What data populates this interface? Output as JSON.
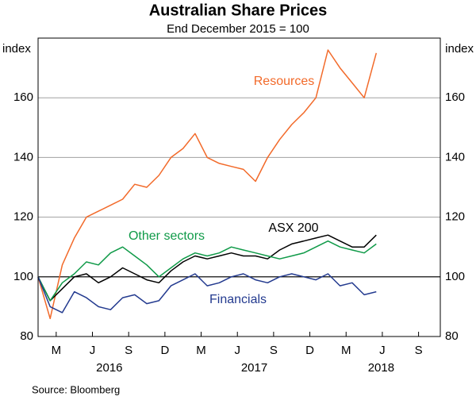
{
  "chart_data": {
    "type": "line",
    "title": "Australian Share Prices",
    "subtitle": "End December 2015 = 100",
    "y_label_left": "index",
    "y_label_right": "index",
    "source": "Source:   Bloomberg",
    "x": [
      0,
      1,
      2,
      3,
      4,
      5,
      6,
      7,
      8,
      9,
      10,
      11,
      12,
      13,
      14,
      15,
      16,
      17,
      18,
      19,
      20,
      21,
      22,
      23,
      24,
      25,
      26,
      27,
      28
    ],
    "series": [
      {
        "name": "Resources",
        "color": "#f26a2a",
        "values": [
          100,
          86,
          104,
          113,
          120,
          122,
          124,
          126,
          131,
          130,
          134,
          140,
          143,
          148,
          140,
          138,
          137,
          136,
          132,
          140,
          146,
          151,
          155,
          160,
          176,
          170,
          165,
          160,
          175
        ]
      },
      {
        "name": "ASX 200",
        "color": "#000000",
        "values": [
          100,
          92,
          96,
          100,
          101,
          98,
          100,
          103,
          101,
          99,
          98,
          102,
          105,
          107,
          106,
          107,
          108,
          107,
          107,
          106,
          109,
          111,
          112,
          113,
          114,
          112,
          110,
          110,
          114
        ]
      },
      {
        "name": "Other sectors",
        "color": "#0f9a48",
        "values": [
          100,
          92,
          98,
          101,
          105,
          104,
          108,
          110,
          107,
          104,
          100,
          103,
          106,
          108,
          107,
          108,
          110,
          109,
          108,
          107,
          106,
          107,
          108,
          110,
          112,
          110,
          109,
          108,
          111
        ]
      },
      {
        "name": "Financials",
        "color": "#233a8f",
        "values": [
          100,
          90,
          88,
          95,
          93,
          90,
          89,
          93,
          94,
          91,
          92,
          97,
          99,
          101,
          97,
          98,
          100,
          101,
          99,
          98,
          100,
          101,
          100,
          99,
          101,
          97,
          98,
          94,
          95
        ]
      }
    ],
    "xlim": [
      0,
      33.3
    ],
    "xticks": [
      {
        "value": 1.5,
        "label": "M"
      },
      {
        "value": 4.5,
        "label": "J"
      },
      {
        "value": 7.5,
        "label": "S"
      },
      {
        "value": 10.5,
        "label": "D"
      },
      {
        "value": 13.5,
        "label": "M"
      },
      {
        "value": 16.5,
        "label": "J"
      },
      {
        "value": 19.5,
        "label": "S"
      },
      {
        "value": 22.5,
        "label": "D"
      },
      {
        "value": 25.5,
        "label": "M"
      },
      {
        "value": 28.5,
        "label": "J"
      },
      {
        "value": 31.5,
        "label": "S"
      }
    ],
    "xyears": [
      {
        "value": 5.9,
        "label": "2016"
      },
      {
        "value": 17.9,
        "label": "2017"
      },
      {
        "value": 28.4,
        "label": "2018"
      }
    ],
    "ylim": [
      80,
      180
    ],
    "yticks": [
      80,
      100,
      120,
      140,
      160
    ],
    "reference_line": 100,
    "grid": true
  }
}
